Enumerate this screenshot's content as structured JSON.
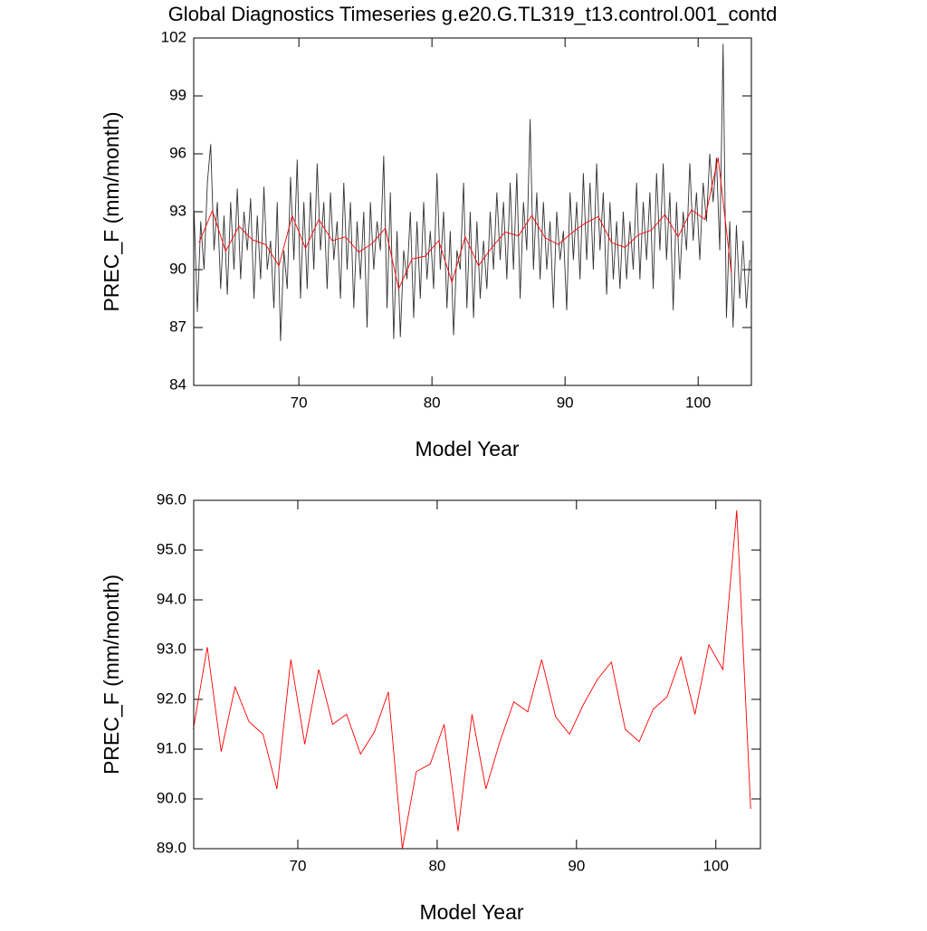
{
  "chart_data": [
    {
      "type": "line",
      "title": "Global Diagnostics Timeseries g.e20.G.TL319_t13.control.001_contd",
      "x_label": "Model Year",
      "y_label": "PREC_F (mm/month)",
      "xlim": [
        62.1,
        104.0
      ],
      "ylim": [
        84,
        102
      ],
      "xticks": [
        70,
        80,
        90,
        100
      ],
      "yticks": [
        84,
        87,
        90,
        93,
        96,
        99,
        102
      ],
      "series": [
        {
          "color": "#333333",
          "x": [
            62.125,
            62.375,
            62.625,
            62.875,
            63.125,
            63.375,
            63.625,
            63.875,
            64.125,
            64.375,
            64.625,
            64.875,
            65.125,
            65.375,
            65.625,
            65.875,
            66.125,
            66.375,
            66.625,
            66.875,
            67.125,
            67.375,
            67.625,
            67.875,
            68.125,
            68.375,
            68.625,
            68.875,
            69.125,
            69.375,
            69.625,
            69.875,
            70.125,
            70.375,
            70.625,
            70.875,
            71.125,
            71.375,
            71.625,
            71.875,
            72.125,
            72.375,
            72.625,
            72.875,
            73.125,
            73.375,
            73.625,
            73.875,
            74.125,
            74.375,
            74.625,
            74.875,
            75.125,
            75.375,
            75.625,
            75.875,
            76.125,
            76.375,
            76.625,
            76.875,
            77.125,
            77.375,
            77.625,
            77.875,
            78.125,
            78.375,
            78.625,
            78.875,
            79.125,
            79.375,
            79.625,
            79.875,
            80.125,
            80.375,
            80.625,
            80.875,
            81.125,
            81.375,
            81.625,
            81.875,
            82.125,
            82.375,
            82.625,
            82.875,
            83.125,
            83.375,
            83.625,
            83.875,
            84.125,
            84.375,
            84.625,
            84.875,
            85.125,
            85.375,
            85.625,
            85.875,
            86.125,
            86.375,
            86.625,
            86.875,
            87.125,
            87.375,
            87.625,
            87.875,
            88.125,
            88.375,
            88.625,
            88.875,
            89.125,
            89.375,
            89.625,
            89.875,
            90.125,
            90.375,
            90.625,
            90.875,
            91.125,
            91.375,
            91.625,
            91.875,
            92.125,
            92.375,
            92.625,
            92.875,
            93.125,
            93.375,
            93.625,
            93.875,
            94.125,
            94.375,
            94.625,
            94.875,
            95.125,
            95.375,
            95.625,
            95.875,
            96.125,
            96.375,
            96.625,
            96.875,
            97.125,
            97.375,
            97.625,
            97.875,
            98.125,
            98.375,
            98.625,
            98.875,
            99.125,
            99.375,
            99.625,
            99.875,
            100.125,
            100.375,
            100.625,
            100.875,
            101.125,
            101.375,
            101.625,
            101.875,
            102.125,
            102.375,
            102.625,
            102.875,
            103.125,
            103.375,
            103.625,
            103.875
          ],
          "values": [
            93.0,
            87.8,
            92.5,
            90.0,
            94.5,
            96.5,
            91.0,
            93.5,
            89.0,
            92.8,
            88.7,
            93.5,
            90.0,
            94.2,
            89.5,
            93.0,
            91.0,
            93.7,
            88.5,
            92.8,
            89.5,
            94.3,
            90.0,
            91.5,
            88.0,
            93.5,
            86.3,
            91.0,
            89.0,
            94.8,
            90.5,
            95.7,
            88.5,
            93.5,
            89.0,
            94.0,
            90.0,
            95.5,
            91.0,
            93.5,
            89.0,
            94.0,
            90.5,
            92.5,
            88.5,
            94.5,
            90.0,
            93.5,
            88.0,
            92.5,
            89.5,
            93.0,
            87.0,
            93.5,
            90.0,
            92.5,
            91.0,
            95.9,
            88.0,
            94.0,
            86.4,
            92.0,
            86.5,
            91.0,
            89.5,
            93.0,
            87.5,
            92.5,
            88.5,
            93.5,
            89.5,
            92.0,
            89.0,
            95.0,
            90.0,
            93.0,
            88.0,
            92.0,
            86.6,
            91.0,
            90.0,
            94.5,
            88.0,
            93.0,
            87.5,
            92.5,
            88.5,
            91.5,
            89.0,
            93.0,
            90.0,
            94.0,
            90.5,
            93.5,
            89.5,
            94.5,
            90.0,
            95.0,
            88.5,
            93.5,
            91.0,
            97.8,
            90.0,
            94.0,
            89.5,
            93.5,
            90.0,
            92.5,
            88.0,
            93.0,
            90.5,
            92.0,
            87.9,
            94.0,
            90.5,
            93.5,
            89.5,
            95.0,
            90.5,
            94.5,
            90.0,
            95.5,
            91.0,
            94.0,
            88.7,
            93.5,
            89.5,
            92.5,
            89.0,
            93.0,
            89.5,
            92.5,
            90.0,
            94.5,
            89.5,
            93.5,
            90.5,
            94.0,
            89.0,
            95.0,
            91.0,
            95.5,
            90.5,
            94.0,
            87.9,
            93.5,
            89.5,
            93.0,
            91.0,
            95.5,
            91.5,
            94.0,
            90.5,
            94.5,
            92.5,
            96.0,
            93.5,
            95.8,
            91.0,
            101.7,
            87.5,
            92.5,
            87.0,
            92.3,
            88.5,
            91.5,
            88.0,
            90.5
          ]
        },
        {
          "color": "#ff0000",
          "x": [
            62.5,
            63.5,
            64.5,
            65.5,
            66.5,
            67.5,
            68.5,
            69.5,
            70.5,
            71.5,
            72.5,
            73.5,
            74.5,
            75.5,
            76.5,
            77.5,
            78.5,
            79.5,
            80.5,
            81.5,
            82.5,
            83.5,
            84.5,
            85.5,
            86.5,
            87.5,
            88.5,
            89.5,
            90.5,
            91.5,
            92.5,
            93.5,
            94.5,
            95.5,
            96.5,
            97.5,
            98.5,
            99.5,
            100.5,
            101.5,
            102.5
          ],
          "values": [
            91.4,
            93.05,
            90.95,
            92.25,
            91.55,
            91.3,
            90.2,
            92.8,
            91.1,
            92.6,
            91.5,
            91.7,
            90.9,
            91.35,
            92.15,
            89.0,
            90.55,
            90.7,
            91.5,
            89.35,
            91.7,
            90.2,
            91.15,
            91.95,
            91.75,
            92.8,
            91.65,
            91.3,
            91.9,
            92.4,
            92.75,
            91.4,
            91.15,
            91.8,
            92.05,
            92.85,
            91.7,
            93.1,
            92.6,
            95.8,
            89.8
          ]
        }
      ]
    },
    {
      "type": "line",
      "x_label": "Model Year",
      "y_label": "PREC_F (mm/month)",
      "xlim": [
        62.53,
        103.2
      ],
      "ylim": [
        89.0,
        96.0
      ],
      "xticks": [
        70,
        80,
        90,
        100
      ],
      "yticks": [
        {
          "value": 89,
          "label": "89.0"
        },
        {
          "value": 90,
          "label": "90.0"
        },
        {
          "value": 91,
          "label": "91.0"
        },
        {
          "value": 92,
          "label": "92.0"
        },
        {
          "value": 93,
          "label": "93.0"
        },
        {
          "value": 94,
          "label": "94.0"
        },
        {
          "value": 95,
          "label": "95.0"
        },
        {
          "value": 96,
          "label": "96.0"
        }
      ],
      "series": [
        {
          "color": "#ff0000",
          "x": [
            62.5,
            63.5,
            64.5,
            65.5,
            66.5,
            67.5,
            68.5,
            69.5,
            70.5,
            71.5,
            72.5,
            73.5,
            74.5,
            75.5,
            76.5,
            77.5,
            78.5,
            79.5,
            80.5,
            81.5,
            82.5,
            83.5,
            84.5,
            85.5,
            86.5,
            87.5,
            88.5,
            89.5,
            90.5,
            91.5,
            92.5,
            93.5,
            94.5,
            95.5,
            96.5,
            97.5,
            98.5,
            99.5,
            100.5,
            101.5,
            102.5
          ],
          "values": [
            91.4,
            93.05,
            90.95,
            92.25,
            91.55,
            91.3,
            90.2,
            92.8,
            91.1,
            92.6,
            91.5,
            91.7,
            90.9,
            91.35,
            92.15,
            89.0,
            90.55,
            90.7,
            91.5,
            89.35,
            91.7,
            90.2,
            91.15,
            91.95,
            91.75,
            92.8,
            91.65,
            91.3,
            91.9,
            92.4,
            92.75,
            91.4,
            91.15,
            91.8,
            92.05,
            92.85,
            91.7,
            93.1,
            92.6,
            95.8,
            89.8
          ]
        }
      ]
    }
  ]
}
